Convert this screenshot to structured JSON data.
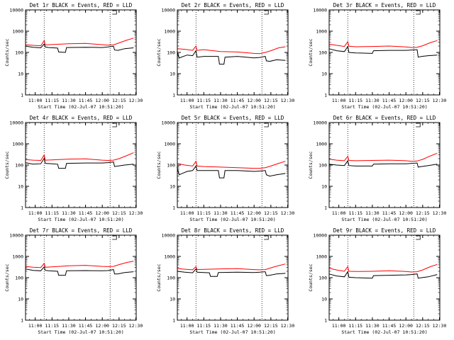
{
  "chart_data": [
    {
      "type": "line",
      "title": "Det 1r BLACK = Events, RED = LLD",
      "xlabel": "Start Time (02-Jul-07 10:51:20)",
      "ylabel": "Counts/sec",
      "y_scale": "log",
      "ylim": [
        1,
        10000
      ],
      "x_ticks": [
        "11:00",
        "11:15",
        "11:30",
        "11:45",
        "12:00",
        "12:15",
        "12:30"
      ],
      "y_ticks": [
        "1",
        "10",
        "100",
        "1000",
        "10000"
      ],
      "markers": [
        "11:08",
        "12:07"
      ],
      "grid": false,
      "series": [
        {
          "color": "#000000",
          "x": [
            "10:51",
            "10:58",
            "11:05",
            "11:08",
            "11:09",
            "11:12",
            "11:20",
            "11:21",
            "11:27",
            "11:28",
            "11:45",
            "12:00",
            "12:05",
            "12:10",
            "12:11",
            "12:14",
            "12:20",
            "12:28"
          ],
          "values": [
            200,
            175,
            165,
            250,
            180,
            170,
            160,
            105,
            100,
            170,
            175,
            170,
            180,
            195,
            130,
            125,
            150,
            165
          ]
        },
        {
          "color": "#ff0000",
          "x": [
            "10:51",
            "10:58",
            "11:05",
            "11:08",
            "11:09",
            "11:15",
            "11:30",
            "11:45",
            "12:00",
            "12:05",
            "12:10",
            "12:15",
            "12:22",
            "12:28"
          ],
          "values": [
            230,
            215,
            205,
            360,
            225,
            235,
            255,
            265,
            230,
            220,
            225,
            280,
            380,
            470
          ]
        }
      ]
    },
    {
      "type": "line",
      "title": "Det 2r BLACK = Events, RED = LLD",
      "xlabel": "Start Time (02-Jul-07 10:51:20)",
      "ylabel": "Counts/sec",
      "y_scale": "log",
      "ylim": [
        1,
        10000
      ],
      "x_ticks": [
        "11:00",
        "11:15",
        "11:30",
        "11:45",
        "12:00",
        "12:15",
        "12:30"
      ],
      "y_ticks": [
        "1",
        "10",
        "100",
        "1000",
        "10000"
      ],
      "markers": [
        "11:08",
        "12:07"
      ],
      "grid": false,
      "series": [
        {
          "color": "#000000",
          "x": [
            "10:51",
            "10:53",
            "11:00",
            "11:05",
            "11:08",
            "11:09",
            "11:15",
            "11:28",
            "11:29",
            "11:33",
            "11:34",
            "11:45",
            "12:00",
            "12:05",
            "12:10",
            "12:11",
            "12:14",
            "12:20",
            "12:28"
          ],
          "values": [
            110,
            55,
            75,
            70,
            120,
            60,
            65,
            65,
            28,
            28,
            60,
            65,
            55,
            58,
            65,
            40,
            38,
            45,
            42
          ]
        },
        {
          "color": "#ff0000",
          "x": [
            "10:51",
            "10:58",
            "11:05",
            "11:08",
            "11:09",
            "11:15",
            "11:30",
            "11:45",
            "12:00",
            "12:05",
            "12:10",
            "12:15",
            "12:22",
            "12:28"
          ],
          "values": [
            150,
            140,
            125,
            200,
            125,
            135,
            110,
            105,
            90,
            88,
            100,
            120,
            165,
            185
          ]
        }
      ]
    },
    {
      "type": "line",
      "title": "Det 3r BLACK = Events, RED = LLD",
      "xlabel": "Start Time (02-Jul-07 10:51:20)",
      "ylabel": "Counts/sec",
      "y_scale": "log",
      "ylim": [
        1,
        10000
      ],
      "x_ticks": [
        "11:00",
        "11:15",
        "11:30",
        "11:45",
        "12:00",
        "12:15",
        "12:30"
      ],
      "y_ticks": [
        "1",
        "10",
        "100",
        "1000",
        "10000"
      ],
      "markers": [
        "11:08",
        "12:07"
      ],
      "grid": false,
      "series": [
        {
          "color": "#000000",
          "x": [
            "10:51",
            "10:58",
            "11:05",
            "11:08",
            "11:09",
            "11:15",
            "11:30",
            "11:31",
            "11:45",
            "12:00",
            "12:05",
            "12:10",
            "12:11",
            "12:14",
            "12:20",
            "12:28"
          ],
          "values": [
            150,
            120,
            110,
            190,
            100,
            95,
            90,
            120,
            125,
            125,
            130,
            135,
            60,
            65,
            70,
            75
          ]
        },
        {
          "color": "#ff0000",
          "x": [
            "10:51",
            "10:58",
            "11:05",
            "11:08",
            "11:09",
            "11:15",
            "11:30",
            "11:45",
            "12:00",
            "12:05",
            "12:10",
            "12:15",
            "12:22",
            "12:28"
          ],
          "values": [
            250,
            215,
            190,
            320,
            195,
            185,
            190,
            200,
            180,
            170,
            175,
            205,
            290,
            360
          ]
        }
      ]
    },
    {
      "type": "line",
      "title": "Det 4r BLACK = Events, RED = LLD",
      "xlabel": "Start Time (02-Jul-07 10:51:20)",
      "ylabel": "Counts/sec",
      "y_scale": "log",
      "ylim": [
        1,
        10000
      ],
      "x_ticks": [
        "11:00",
        "11:15",
        "11:30",
        "11:45",
        "12:00",
        "12:15",
        "12:30"
      ],
      "y_ticks": [
        "1",
        "10",
        "100",
        "1000",
        "10000"
      ],
      "markers": [
        "11:08",
        "12:07"
      ],
      "grid": false,
      "series": [
        {
          "color": "#000000",
          "x": [
            "10:51",
            "10:58",
            "11:05",
            "11:08",
            "11:09",
            "11:15",
            "11:20",
            "11:21",
            "11:27",
            "11:28",
            "11:45",
            "12:00",
            "12:05",
            "12:10",
            "12:11",
            "12:14",
            "12:20",
            "12:28"
          ],
          "values": [
            130,
            110,
            115,
            210,
            120,
            115,
            110,
            70,
            70,
            120,
            125,
            125,
            130,
            140,
            85,
            90,
            100,
            110
          ]
        },
        {
          "color": "#ff0000",
          "x": [
            "10:51",
            "10:58",
            "11:05",
            "11:08",
            "11:09",
            "11:15",
            "11:30",
            "11:45",
            "12:00",
            "12:05",
            "12:10",
            "12:15",
            "12:22",
            "12:28"
          ],
          "values": [
            180,
            170,
            165,
            300,
            170,
            175,
            190,
            195,
            170,
            165,
            170,
            200,
            280,
            380
          ]
        }
      ]
    },
    {
      "type": "line",
      "title": "Det 5r BLACK = Events, RED = LLD",
      "xlabel": "Start Time (02-Jul-07 10:51:20)",
      "ylabel": "Counts/sec",
      "y_scale": "log",
      "ylim": [
        1,
        10000
      ],
      "x_ticks": [
        "11:00",
        "11:15",
        "11:30",
        "11:45",
        "12:00",
        "12:15",
        "12:30"
      ],
      "y_ticks": [
        "1",
        "10",
        "100",
        "1000",
        "10000"
      ],
      "markers": [
        "11:08",
        "12:07"
      ],
      "grid": false,
      "series": [
        {
          "color": "#000000",
          "x": [
            "10:51",
            "10:53",
            "11:00",
            "11:05",
            "11:08",
            "11:09",
            "11:15",
            "11:28",
            "11:29",
            "11:33",
            "11:34",
            "11:45",
            "12:00",
            "12:05",
            "12:10",
            "12:11",
            "12:14",
            "12:20",
            "12:28"
          ],
          "values": [
            80,
            35,
            50,
            55,
            90,
            55,
            55,
            55,
            25,
            25,
            55,
            55,
            50,
            52,
            55,
            35,
            30,
            35,
            40
          ]
        },
        {
          "color": "#ff0000",
          "x": [
            "10:51",
            "10:58",
            "11:05",
            "11:08",
            "11:09",
            "11:15",
            "11:30",
            "11:45",
            "12:00",
            "12:05",
            "12:10",
            "12:15",
            "12:22",
            "12:28"
          ],
          "values": [
            120,
            100,
            90,
            150,
            90,
            85,
            80,
            75,
            70,
            70,
            75,
            90,
            120,
            150
          ]
        }
      ]
    },
    {
      "type": "line",
      "title": "Det 6r BLACK = Events, RED = LLD",
      "xlabel": "Start Time (02-Jul-07 10:51:20)",
      "ylabel": "Counts/sec",
      "y_scale": "log",
      "ylim": [
        1,
        10000
      ],
      "x_ticks": [
        "11:00",
        "11:15",
        "11:30",
        "11:45",
        "12:00",
        "12:15",
        "12:30"
      ],
      "y_ticks": [
        "1",
        "10",
        "100",
        "1000",
        "10000"
      ],
      "markers": [
        "11:08",
        "12:07"
      ],
      "grid": false,
      "series": [
        {
          "color": "#000000",
          "x": [
            "10:51",
            "10:58",
            "11:05",
            "11:08",
            "11:09",
            "11:15",
            "11:30",
            "11:31",
            "11:45",
            "12:00",
            "12:05",
            "12:10",
            "12:11",
            "12:14",
            "12:20",
            "12:28"
          ],
          "values": [
            110,
            100,
            95,
            160,
            95,
            90,
            90,
            110,
            115,
            115,
            120,
            125,
            80,
            85,
            95,
            110
          ]
        },
        {
          "color": "#ff0000",
          "x": [
            "10:51",
            "10:58",
            "11:05",
            "11:08",
            "11:09",
            "11:15",
            "11:30",
            "11:45",
            "12:00",
            "12:05",
            "12:10",
            "12:15",
            "12:22",
            "12:28"
          ],
          "values": [
            190,
            170,
            160,
            260,
            165,
            160,
            165,
            170,
            160,
            150,
            155,
            185,
            270,
            360
          ]
        }
      ]
    },
    {
      "type": "line",
      "title": "Det 7r BLACK = Events, RED = LLD",
      "xlabel": "Start Time (02-Jul-07 10:51:20)",
      "ylabel": "Counts/sec",
      "y_scale": "log",
      "ylim": [
        1,
        10000
      ],
      "x_ticks": [
        "11:00",
        "11:15",
        "11:30",
        "11:45",
        "12:00",
        "12:15",
        "12:30"
      ],
      "y_ticks": [
        "1",
        "10",
        "100",
        "1000",
        "10000"
      ],
      "markers": [
        "11:08",
        "12:07"
      ],
      "grid": false,
      "series": [
        {
          "color": "#000000",
          "x": [
            "10:51",
            "10:58",
            "11:05",
            "11:08",
            "11:09",
            "11:12",
            "11:20",
            "11:21",
            "11:27",
            "11:28",
            "11:45",
            "12:00",
            "12:05",
            "12:10",
            "12:11",
            "12:14",
            "12:20",
            "12:28"
          ],
          "values": [
            260,
            220,
            210,
            320,
            220,
            210,
            200,
            130,
            130,
            210,
            215,
            210,
            215,
            240,
            150,
            150,
            175,
            190
          ]
        },
        {
          "color": "#ff0000",
          "x": [
            "10:51",
            "10:58",
            "11:05",
            "11:08",
            "11:09",
            "11:15",
            "11:30",
            "11:45",
            "12:00",
            "12:05",
            "12:10",
            "12:15",
            "12:22",
            "12:28"
          ],
          "values": [
            340,
            310,
            300,
            470,
            310,
            320,
            360,
            380,
            340,
            330,
            340,
            410,
            520,
            600
          ]
        }
      ]
    },
    {
      "type": "line",
      "title": "Det 8r BLACK = Events, RED = LLD",
      "xlabel": "Start Time (02-Jul-07 10:51:20)",
      "ylabel": "Counts/sec",
      "y_scale": "log",
      "ylim": [
        1,
        10000
      ],
      "x_ticks": [
        "11:00",
        "11:15",
        "11:30",
        "11:45",
        "12:00",
        "12:15",
        "12:30"
      ],
      "y_ticks": [
        "1",
        "10",
        "100",
        "1000",
        "10000"
      ],
      "markers": [
        "11:08",
        "12:07"
      ],
      "grid": false,
      "series": [
        {
          "color": "#000000",
          "x": [
            "10:51",
            "10:58",
            "11:05",
            "11:08",
            "11:09",
            "11:15",
            "11:20",
            "11:21",
            "11:27",
            "11:28",
            "11:45",
            "12:00",
            "12:05",
            "12:10",
            "12:11",
            "12:14",
            "12:20",
            "12:28"
          ],
          "values": [
            200,
            180,
            170,
            260,
            180,
            175,
            170,
            115,
            115,
            175,
            180,
            175,
            180,
            190,
            125,
            130,
            150,
            160
          ]
        },
        {
          "color": "#ff0000",
          "x": [
            "10:51",
            "10:58",
            "11:05",
            "11:08",
            "11:09",
            "11:15",
            "11:30",
            "11:45",
            "12:00",
            "12:05",
            "12:10",
            "12:15",
            "12:22",
            "12:28"
          ],
          "values": [
            270,
            250,
            235,
            330,
            240,
            245,
            260,
            265,
            240,
            235,
            240,
            290,
            370,
            440
          ]
        }
      ]
    },
    {
      "type": "line",
      "title": "Det 9r BLACK = Events, RED = LLD",
      "xlabel": "Start Time (02-Jul-07 10:51:20)",
      "ylabel": "Counts/sec",
      "y_scale": "log",
      "ylim": [
        1,
        10000
      ],
      "x_ticks": [
        "11:00",
        "11:15",
        "11:30",
        "11:45",
        "12:00",
        "12:15",
        "12:30"
      ],
      "y_ticks": [
        "1",
        "10",
        "100",
        "1000",
        "10000"
      ],
      "markers": [
        "11:08",
        "12:07"
      ],
      "grid": false,
      "series": [
        {
          "color": "#000000",
          "x": [
            "10:51",
            "10:58",
            "11:05",
            "11:08",
            "11:09",
            "11:15",
            "11:30",
            "11:31",
            "11:45",
            "12:00",
            "12:05",
            "12:10",
            "12:11",
            "12:14",
            "12:20",
            "12:28"
          ],
          "values": [
            150,
            120,
            110,
            190,
            105,
            100,
            95,
            125,
            130,
            135,
            140,
            150,
            95,
            100,
            110,
            140
          ]
        },
        {
          "color": "#ff0000",
          "x": [
            "10:51",
            "10:58",
            "11:05",
            "11:08",
            "11:09",
            "11:15",
            "11:30",
            "11:45",
            "12:00",
            "12:05",
            "12:10",
            "12:15",
            "12:22",
            "12:28"
          ],
          "values": [
            280,
            230,
            200,
            330,
            200,
            195,
            200,
            210,
            195,
            185,
            190,
            230,
            330,
            420
          ]
        }
      ]
    }
  ]
}
